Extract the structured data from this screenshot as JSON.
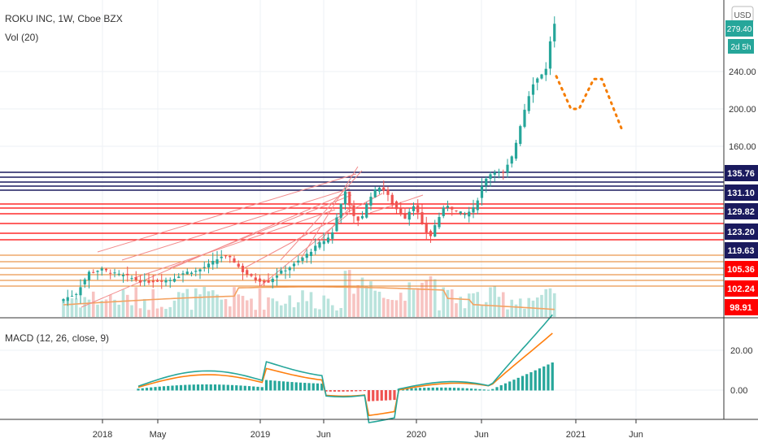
{
  "chart_data": {
    "type": "candlestick",
    "title": "ROKU INC, 1W, Cboe BZX",
    "volume_label": "Vol (20)",
    "currency": "USD",
    "last_price_label": "279.40",
    "countdown_label": "2d 5h",
    "price_axis": {
      "ticks": [
        "160.00",
        "200.00",
        "240.00"
      ],
      "tick_values": [
        160,
        200,
        240
      ]
    },
    "levels": [
      {
        "label": "135.76",
        "color": "#1a1a5e"
      },
      {
        "label": "131.10",
        "color": "#1a1a5e"
      },
      {
        "label": "129.82",
        "color": "#1a1a5e"
      },
      {
        "label": "123.20",
        "color": "#1a1a5e"
      },
      {
        "label": "119.63",
        "color": "#1a1a5e"
      },
      {
        "label": "105.36",
        "color": "#ff0000"
      },
      {
        "label": "102.24",
        "color": "#ff0000"
      },
      {
        "label": "98.91",
        "color": "#ff0000"
      }
    ],
    "time_axis": {
      "labels": [
        "2018",
        "May",
        "2019",
        "Jun",
        "2020",
        "Jun",
        "2021",
        "Jun"
      ]
    },
    "projection_path_prices": [
      235,
      200,
      200,
      232,
      232,
      175
    ],
    "macd": {
      "label": "MACD (12, 26, close, 9)",
      "ticks": [
        "0.00",
        "20.00"
      ],
      "tick_values": [
        0,
        20
      ]
    },
    "colors": {
      "up": "#26a69a",
      "down": "#ef5350",
      "macd_line": "#26a69a",
      "signal_line": "#ff7f0e",
      "volume_ma": "#f4a261",
      "projection": "#f57c00",
      "level_dark": "#1a1a5e",
      "level_red": "#ff0000",
      "level_orange": "#e67e22"
    }
  }
}
